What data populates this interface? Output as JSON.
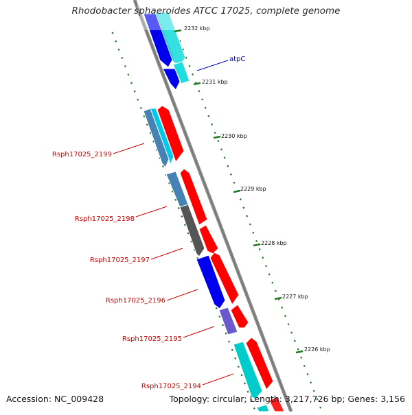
{
  "title": "Rhodobacter sphaeroides ATCC 17025, complete genome",
  "footer": {
    "accession": "Accession: NC_009428",
    "summary": "Topology: circular; Length: 3,217,726 bp; Genes: 3,156"
  },
  "scale_labels": [
    "2232 kbp",
    "2231 kbp",
    "2230 kbp",
    "2229 kbp",
    "2228 kbp",
    "2227 kbp",
    "2226 kbp"
  ],
  "gene_labels": [
    {
      "name": "atpC",
      "color": "#0000cc"
    },
    {
      "name": "Rsph17025_2199",
      "color": "#cc0000"
    },
    {
      "name": "Rsph17025_2198",
      "color": "#cc0000"
    },
    {
      "name": "Rsph17025_2197",
      "color": "#cc0000"
    },
    {
      "name": "Rsph17025_2196",
      "color": "#cc0000"
    },
    {
      "name": "Rsph17025_2195",
      "color": "#cc0000"
    },
    {
      "name": "Rsph17025_2194",
      "color": "#cc0000"
    }
  ],
  "colors": {
    "backbone": "#808080",
    "tick_green": "#1e7a1e",
    "forward_red": "#ff0000",
    "blue": "#0000ee",
    "cyan": "#00cccc",
    "steelblue": "#4682b4",
    "gray": "#555555",
    "slate": "#6a5acd"
  }
}
